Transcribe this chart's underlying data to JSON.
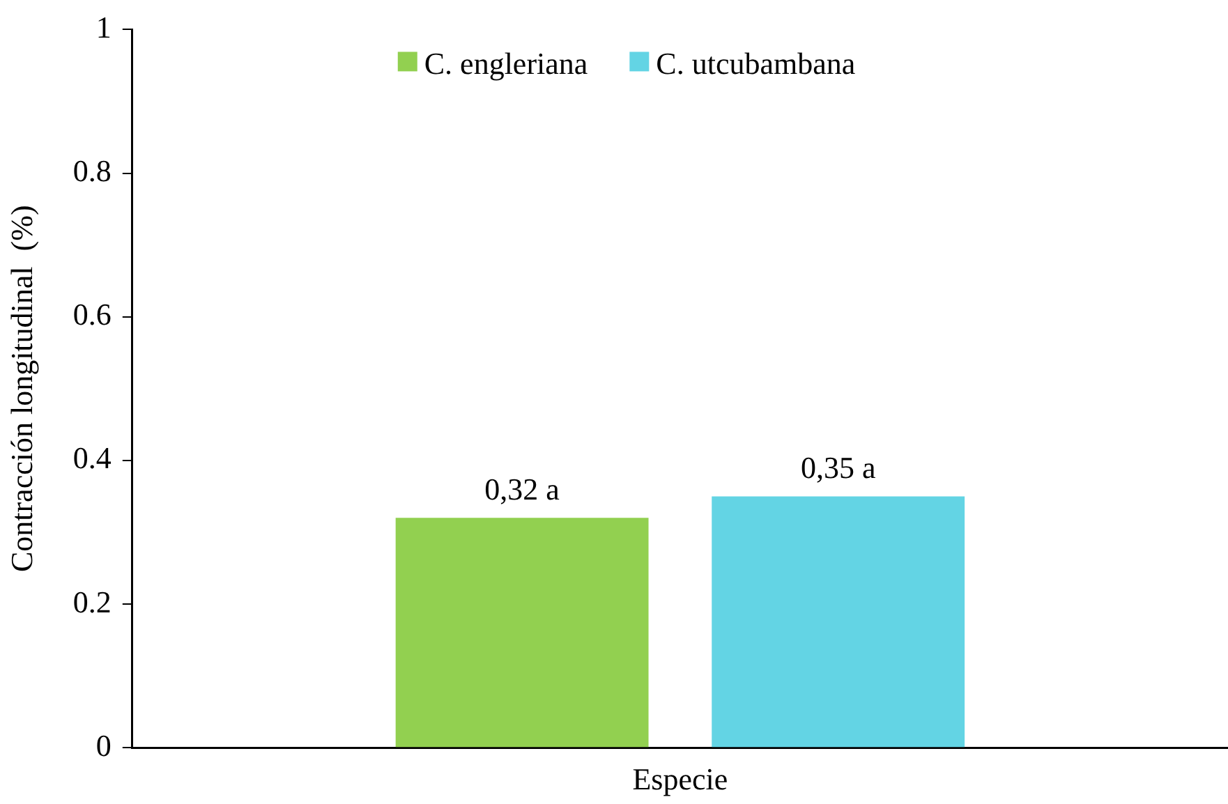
{
  "chart_data": {
    "type": "bar",
    "categories": [
      "Especie"
    ],
    "series": [
      {
        "name": "C. engleriana",
        "color": "#92d050",
        "values": [
          0.32
        ],
        "value_labels": [
          "0,32 a"
        ]
      },
      {
        "name": "C. utcubambana",
        "color": "#63d4e4",
        "values": [
          0.35
        ],
        "value_labels": [
          "0,35 a"
        ]
      }
    ],
    "ylabel": "Contracción longitudinal  (%)",
    "ylim": [
      0,
      1
    ],
    "yticks": [
      0,
      0.2,
      0.4,
      0.6,
      0.8,
      1
    ],
    "grid": false,
    "legend": "top"
  }
}
